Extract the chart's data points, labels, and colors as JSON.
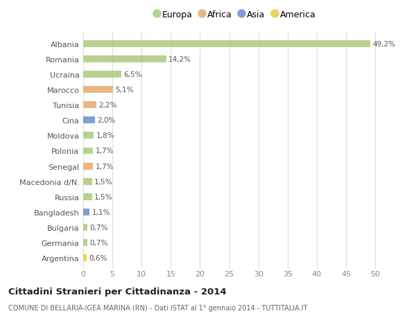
{
  "countries": [
    "Albania",
    "Romania",
    "Ucraina",
    "Marocco",
    "Tunisia",
    "Cina",
    "Moldova",
    "Polonia",
    "Senegal",
    "Macedonia d/N.",
    "Russia",
    "Bangladesh",
    "Bulgaria",
    "Germania",
    "Argentina"
  ],
  "values": [
    49.2,
    14.2,
    6.5,
    5.1,
    2.2,
    2.0,
    1.8,
    1.7,
    1.7,
    1.5,
    1.5,
    1.1,
    0.7,
    0.7,
    0.6
  ],
  "labels": [
    "49,2%",
    "14,2%",
    "6,5%",
    "5,1%",
    "2,2%",
    "2,0%",
    "1,8%",
    "1,7%",
    "1,7%",
    "1,5%",
    "1,5%",
    "1,1%",
    "0,7%",
    "0,7%",
    "0,6%"
  ],
  "continents": [
    "Europa",
    "Europa",
    "Europa",
    "Africa",
    "Africa",
    "Asia",
    "Europa",
    "Europa",
    "Africa",
    "Europa",
    "Europa",
    "Asia",
    "Europa",
    "Europa",
    "America"
  ],
  "colors": {
    "Europa": "#aac97e",
    "Africa": "#e8a96e",
    "Asia": "#6b8fc9",
    "America": "#e8c84a"
  },
  "xlim": [
    0,
    52
  ],
  "xticks": [
    0,
    5,
    10,
    15,
    20,
    25,
    30,
    35,
    40,
    45,
    50
  ],
  "title_bold": "Cittadini Stranieri per Cittadinanza - 2014",
  "subtitle": "COMUNE DI BELLARIA-IGEA MARINA (RN) - Dati ISTAT al 1° gennaio 2014 - TUTTITALIA.IT",
  "bg_color": "#ffffff",
  "grid_color": "#dddddd",
  "bar_height": 0.45,
  "bar_alpha": 0.85,
  "legend_order": [
    "Europa",
    "Africa",
    "Asia",
    "America"
  ]
}
